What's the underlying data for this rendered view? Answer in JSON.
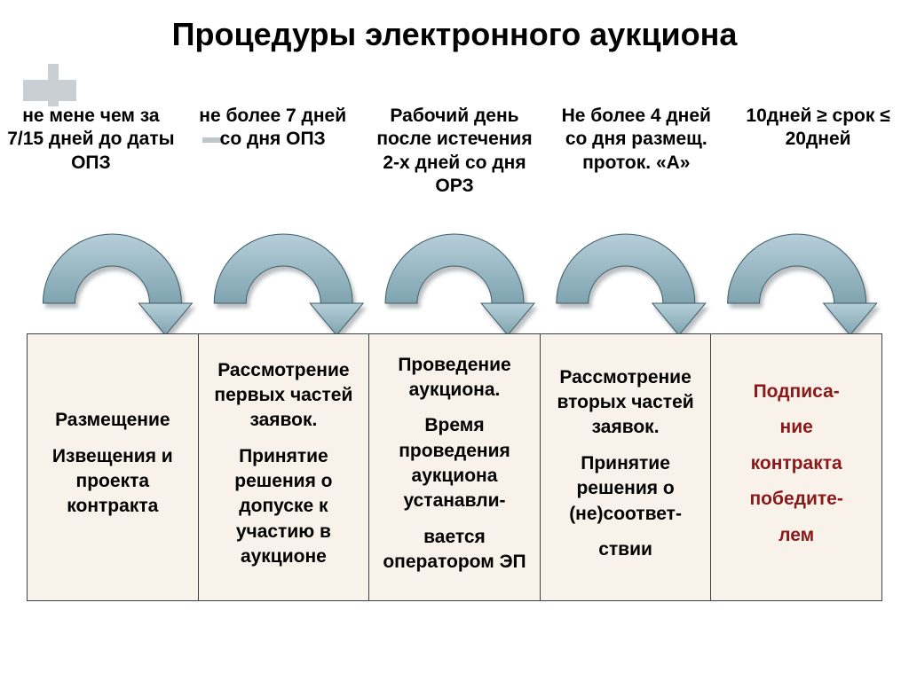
{
  "title": "Процедуры электронного аукциона",
  "title_fontsize": 36,
  "title_color": "#000000",
  "label_fontsize": 21,
  "stage_fontsize": 21,
  "background_color": "#ffffff",
  "table_bg": "#f8f2ea",
  "table_border": "#36454b",
  "final_color": "#8a1a1a",
  "deco_color": "#c9cfd3",
  "arrow": {
    "count": 5,
    "fill_top": "#b6cfda",
    "fill_bottom": "#7ea3af",
    "stroke": "#3f5d66",
    "shadow": "#bcc2c5",
    "arc_outer_r": 78,
    "arc_inner_r": 42,
    "head_width": 52,
    "head_height": 36
  },
  "labels": [
    "не мене чем за 7/15 дней до даты ОПЗ",
    "не более 7 дней со дня ОПЗ",
    "Рабочий день после истечения 2-х дней со дня ОРЗ",
    "Не более 4 дней со дня размещ. проток. «А»",
    "10дней ≥ срок ≤ 20дней"
  ],
  "stages": [
    {
      "lines": [
        "Размещение",
        "Извещения и проекта контракта"
      ],
      "final": false
    },
    {
      "lines": [
        "Рассмотрение первых частей заявок.",
        "Принятие решения о допуске к участию в аукционе"
      ],
      "final": false
    },
    {
      "lines": [
        "Проведение аукциона.",
        "Время проведения аукциона устанавли-",
        "вается оператором ЭП"
      ],
      "final": false
    },
    {
      "lines": [
        "Рассмотрение вторых частей заявок.",
        "Принятие решения о (не)соответ-",
        "ствии"
      ],
      "final": false
    },
    {
      "lines": [
        "Подписа-",
        "ние",
        "контракта",
        "победите-",
        "лем"
      ],
      "final": true
    }
  ]
}
